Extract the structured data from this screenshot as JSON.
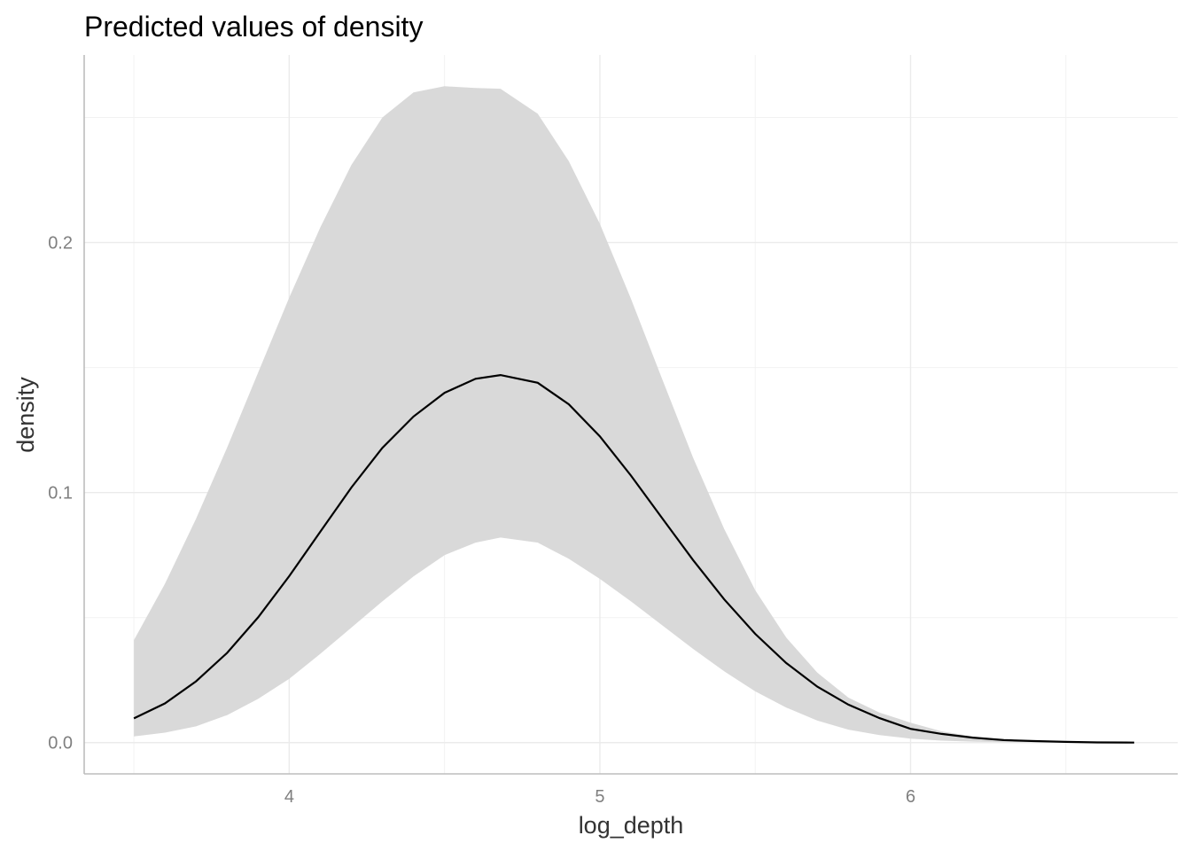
{
  "chart_data": {
    "type": "line",
    "title": "Predicted values of density",
    "xlabel": "log_depth",
    "ylabel": "density",
    "xlim": [
      3.34,
      6.86
    ],
    "ylim": [
      -0.0125,
      0.275
    ],
    "x_ticks": [
      4,
      5,
      6
    ],
    "x_tick_labels": [
      "4",
      "5",
      "6"
    ],
    "x_minor_ticks": [
      3.5,
      4.5,
      5.5,
      6.5
    ],
    "y_ticks": [
      0.0,
      0.1,
      0.2
    ],
    "y_tick_labels": [
      "0.0",
      "0.1",
      "0.2"
    ],
    "y_minor_ticks": [
      0.05,
      0.15,
      0.25
    ],
    "grid": true,
    "band_color": "#d9d9d9",
    "line_color": "#000000",
    "series": [
      {
        "x": [
          3.5,
          3.6,
          3.7,
          3.8,
          3.9,
          4.0,
          4.1,
          4.2,
          4.3,
          4.4,
          4.5,
          4.6,
          4.68,
          4.8,
          4.9,
          5.0,
          5.1,
          5.2,
          5.3,
          5.4,
          5.5,
          5.6,
          5.7,
          5.8,
          5.9,
          6.0,
          6.1,
          6.2,
          6.3,
          6.4,
          6.5,
          6.6,
          6.72
        ],
        "y": [
          0.0097,
          0.0157,
          0.0245,
          0.0359,
          0.0501,
          0.0666,
          0.0843,
          0.102,
          0.1179,
          0.1304,
          0.1399,
          0.1455,
          0.147,
          0.1439,
          0.1353,
          0.1225,
          0.1068,
          0.0898,
          0.073,
          0.0573,
          0.0435,
          0.0318,
          0.0224,
          0.0152,
          0.0098,
          0.0055,
          0.0035,
          0.002,
          0.001,
          0.0006,
          0.0003,
          0.0001,
          0.0
        ],
        "lower": [
          0.0025,
          0.004,
          0.0065,
          0.011,
          0.0175,
          0.0255,
          0.0355,
          0.046,
          0.0565,
          0.0665,
          0.075,
          0.08,
          0.082,
          0.08,
          0.0735,
          0.0655,
          0.0565,
          0.047,
          0.0375,
          0.0285,
          0.0205,
          0.014,
          0.0088,
          0.0052,
          0.003,
          0.0016,
          0.0008,
          0.0004,
          0.0002,
          0.0001,
          0.0,
          0.0,
          0.0
        ],
        "upper": [
          0.041,
          0.0635,
          0.0895,
          0.118,
          0.148,
          0.178,
          0.206,
          0.231,
          0.25,
          0.26,
          0.2625,
          0.2618,
          0.2615,
          0.2515,
          0.2325,
          0.2075,
          0.1775,
          0.1455,
          0.114,
          0.0855,
          0.061,
          0.042,
          0.028,
          0.018,
          0.012,
          0.008,
          0.0045,
          0.0025,
          0.0013,
          0.0007,
          0.0003,
          0.0001,
          0.0
        ]
      }
    ]
  }
}
